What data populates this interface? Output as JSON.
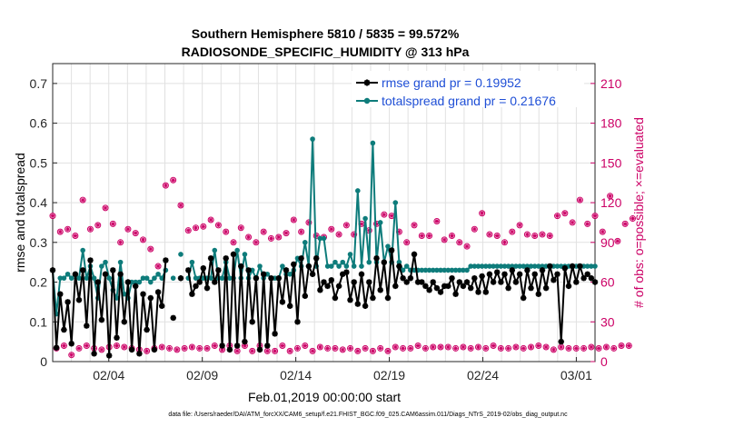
{
  "chart_data": {
    "type": "line",
    "title": "Southern Hemisphere 5810 / 5835 = 99.572%",
    "subtitle": "RADIOSONDE_SPECIFIC_HUMIDITY @ 313 hPa",
    "xlabel": "Feb.01,2019 00:00:00 start",
    "ylabel": "rmse and totalspread",
    "y2label": "# of obs: o=possible; ×=evaluated",
    "xlim": [
      0,
      29
    ],
    "ylim": [
      0,
      0.75
    ],
    "y2lim": [
      0,
      225
    ],
    "x_ticks": [
      {
        "x": 3,
        "label": "02/04"
      },
      {
        "x": 8,
        "label": "02/09"
      },
      {
        "x": 13,
        "label": "02/14"
      },
      {
        "x": 18,
        "label": "02/19"
      },
      {
        "x": 23,
        "label": "02/24"
      },
      {
        "x": 28,
        "label": "03/01"
      }
    ],
    "y_ticks": [
      "0",
      "0.1",
      "0.2",
      "0.3",
      "0.4",
      "0.5",
      "0.6",
      "0.7"
    ],
    "y2_ticks": [
      "0",
      "30",
      "60",
      "90",
      "120",
      "150",
      "180",
      "210"
    ],
    "legend": [
      "rmse grand pr = 0.19952",
      "totalspread grand pr = 0.21676"
    ],
    "colors": {
      "rmse": "#000000",
      "spread": "#0e7c7b",
      "obs": "#cc0066"
    },
    "footnote": "data file: /Users/raeder/DAI/ATM_forcXX/CAM6_setup/f.e21.FHIST_BGC.f09_025.CAM6assim.011/Diags_NTrS_2019-02/obs_diag_output.nc",
    "series": [
      {
        "name": "rmse",
        "values": [
          0.23,
          0.035,
          0.17,
          0.08,
          0.15,
          0.045,
          0.22,
          0.155,
          0.23,
          0.09,
          0.255,
          0.02,
          0.2,
          0.105,
          0.22,
          0.015,
          0.23,
          0.06,
          0.22,
          0.1,
          0.2,
          0.03,
          0.19,
          0.02,
          0.17,
          0.08,
          0.16,
          0.03,
          0.175,
          0.14,
          0.255,
          null,
          0.11,
          null,
          0.21,
          null,
          0.23,
          0.17,
          0.19,
          0.2,
          0.235,
          0.185,
          0.26,
          0.2,
          0.23,
          0.04,
          0.26,
          0.03,
          0.27,
          0.04,
          0.24,
          0.05,
          0.23,
          0.1,
          0.21,
          0.03,
          0.22,
          0.04,
          0.21,
          0.07,
          0.21,
          0.15,
          0.23,
          0.14,
          0.245,
          0.1,
          0.26,
          0.165,
          0.24,
          0.22,
          0.26,
          0.18,
          0.2,
          0.19,
          0.205,
          0.16,
          0.19,
          0.22,
          0.225,
          0.155,
          0.2,
          0.145,
          0.22,
          0.14,
          0.2,
          0.16,
          0.26,
          0.18,
          0.25,
          0.16,
          0.28,
          0.19,
          0.24,
          0.21,
          0.2,
          0.21,
          0.27,
          0.2,
          0.2,
          0.19,
          0.18,
          0.2,
          0.185,
          0.175,
          0.19,
          0.19,
          0.21,
          0.17,
          0.2,
          0.19,
          0.2,
          0.185,
          0.21,
          0.175,
          0.215,
          0.175,
          0.22,
          0.2,
          0.225,
          0.2,
          0.22,
          0.185,
          0.23,
          0.2,
          0.22,
          0.16,
          0.23,
          0.185,
          0.22,
          0.17,
          0.23,
          0.185,
          0.24,
          0.205,
          0.22,
          0.05,
          0.235,
          0.19,
          0.24,
          0.2,
          0.24,
          0.21,
          0.22,
          0.21,
          0.2
        ]
      },
      {
        "name": "totalspread",
        "values": [
          0.23,
          0.12,
          0.21,
          0.21,
          0.22,
          0.21,
          0.22,
          0.21,
          0.28,
          0.21,
          0.24,
          0.21,
          0.16,
          0.24,
          0.25,
          0.21,
          0.18,
          0.16,
          0.25,
          0.17,
          0.16,
          0.2,
          0.2,
          0.2,
          0.21,
          0.21,
          0.2,
          0.21,
          0.22,
          0.21,
          0.23,
          null,
          0.21,
          null,
          0.27,
          null,
          0.21,
          0.25,
          0.21,
          0.21,
          0.21,
          0.21,
          0.21,
          0.28,
          0.21,
          0.21,
          0.25,
          0.21,
          0.21,
          0.28,
          0.21,
          0.27,
          0.21,
          0.23,
          0.21,
          0.24,
          0.21,
          0.22,
          0.21,
          0.21,
          0.21,
          0.24,
          0.22,
          0.22,
          0.23,
          0.26,
          0.24,
          0.3,
          0.24,
          0.56,
          0.24,
          0.31,
          0.31,
          0.24,
          0.24,
          0.25,
          0.24,
          0.25,
          0.24,
          0.27,
          0.24,
          0.43,
          0.24,
          0.36,
          0.25,
          0.55,
          0.25,
          0.35,
          0.25,
          0.29,
          0.25,
          0.4,
          0.25,
          0.23,
          0.24,
          0.23,
          0.23,
          0.23,
          0.23,
          0.23,
          0.23,
          0.23,
          0.23,
          0.23,
          0.23,
          0.23,
          0.23,
          0.23,
          0.23,
          0.23,
          0.23,
          0.24,
          0.24,
          0.24,
          0.24,
          0.24,
          0.24,
          0.24,
          0.24,
          0.24,
          0.24,
          0.24,
          0.24,
          0.24,
          0.24,
          0.24,
          0.24,
          0.24,
          0.24,
          0.24,
          0.24,
          0.24,
          0.24,
          0.24,
          0.24,
          0.24,
          0.24,
          0.24,
          0.24,
          0.24,
          0.24,
          0.24,
          0.24,
          0.24,
          0.24
        ]
      },
      {
        "name": "obs possible",
        "values": [
          110,
          10,
          98,
          12,
          100,
          5,
          95,
          10,
          122,
          12,
          100,
          10,
          103,
          9,
          116,
          11,
          104,
          12,
          90,
          11,
          100,
          10,
          97,
          9,
          92,
          8,
          85,
          10,
          72,
          11,
          133,
          10,
          137,
          9,
          118,
          10,
          99,
          11,
          101,
          10,
          102,
          10,
          107,
          12,
          103,
          9,
          98,
          12,
          90,
          8,
          101,
          12,
          94,
          8,
          90,
          12,
          98,
          8,
          93,
          8,
          94,
          12,
          97,
          8,
          107,
          10,
          98,
          12,
          105,
          8,
          95,
          11,
          94,
          10,
          100,
          10,
          96,
          9,
          103,
          10,
          96,
          8,
          104,
          10,
          99,
          8,
          104,
          10,
          111,
          8,
          110,
          11,
          98,
          10,
          90,
          10,
          103,
          12,
          95,
          10,
          95,
          11,
          106,
          11,
          92,
          11,
          95,
          10,
          90,
          11,
          87,
          10,
          100,
          11,
          112,
          10,
          96,
          12,
          95,
          10,
          90,
          10,
          98,
          11,
          103,
          10,
          96,
          11,
          95,
          12,
          96,
          11,
          95,
          9,
          110,
          11,
          112,
          10,
          105,
          10,
          122,
          10,
          104,
          11,
          110,
          10,
          98,
          11,
          125,
          10,
          91,
          12,
          104,
          12,
          108
        ]
      }
    ]
  }
}
